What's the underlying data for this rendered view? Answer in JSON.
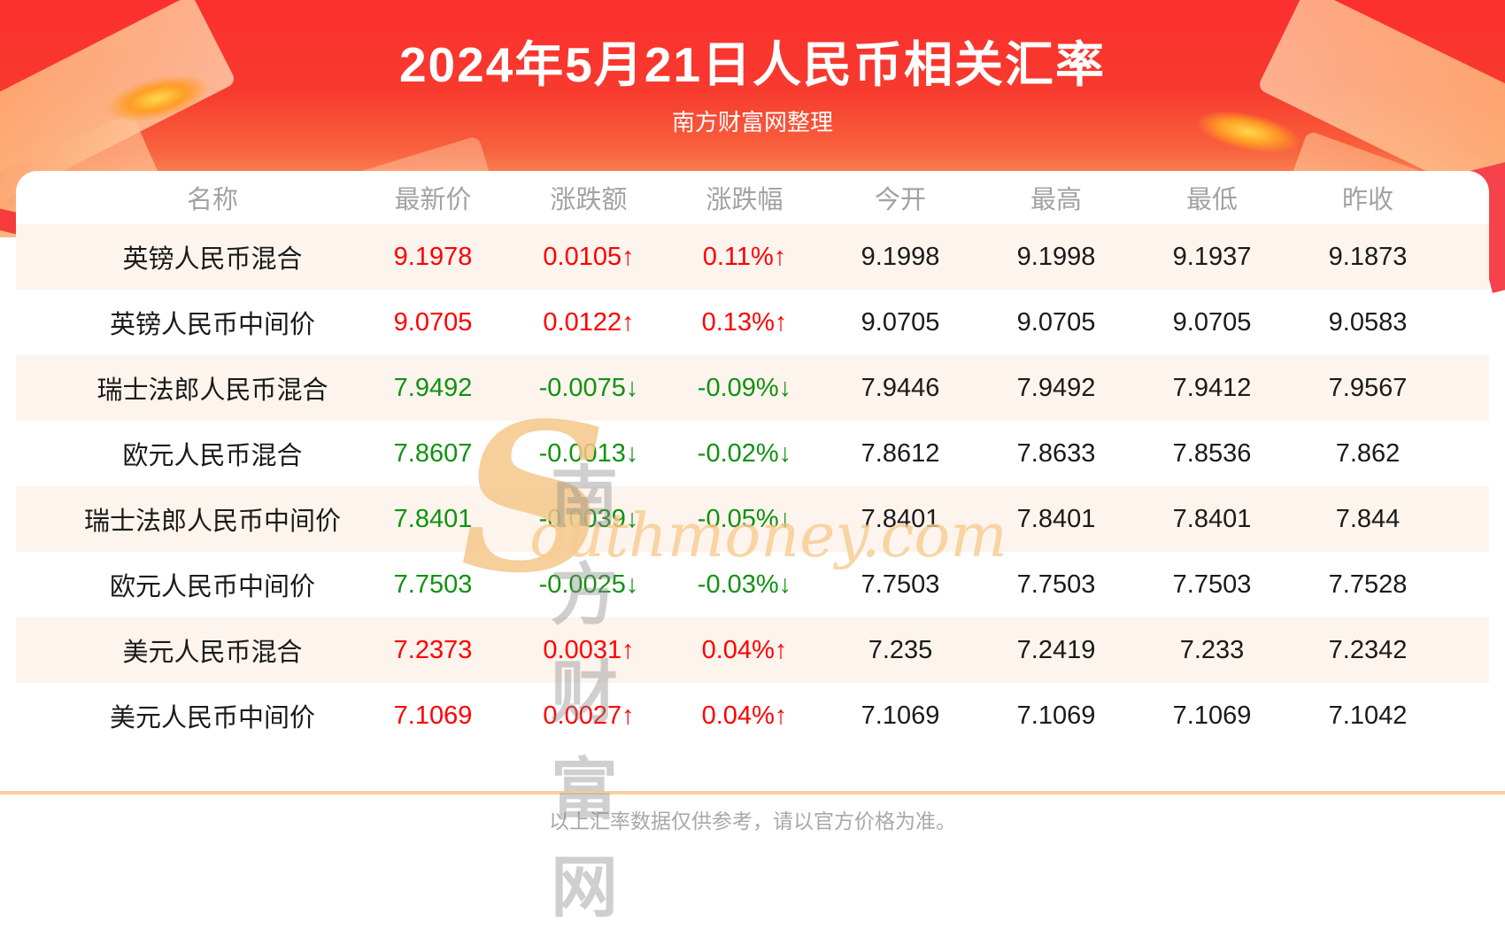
{
  "banner": {
    "title": "2024年5月21日人民币相关汇率",
    "subtitle": "南方财富网整理"
  },
  "chart_data": {
    "type": "table",
    "title": "2024年5月21日人民币相关汇率",
    "columns": [
      "名称",
      "最新价",
      "涨跌额",
      "涨跌幅",
      "今开",
      "最高",
      "最低",
      "昨收"
    ],
    "rows": [
      {
        "name": "英镑人民币混合",
        "latest": "9.1978",
        "change": "0.0105↑",
        "pct": "0.11%↑",
        "open": "9.1998",
        "high": "9.1998",
        "low": "9.1937",
        "prev": "9.1873",
        "trend": "up"
      },
      {
        "name": "英镑人民币中间价",
        "latest": "9.0705",
        "change": "0.0122↑",
        "pct": "0.13%↑",
        "open": "9.0705",
        "high": "9.0705",
        "low": "9.0705",
        "prev": "9.0583",
        "trend": "up"
      },
      {
        "name": "瑞士法郎人民币混合",
        "latest": "7.9492",
        "change": "-0.0075↓",
        "pct": "-0.09%↓",
        "open": "7.9446",
        "high": "7.9492",
        "low": "7.9412",
        "prev": "7.9567",
        "trend": "down"
      },
      {
        "name": "欧元人民币混合",
        "latest": "7.8607",
        "change": "-0.0013↓",
        "pct": "-0.02%↓",
        "open": "7.8612",
        "high": "7.8633",
        "low": "7.8536",
        "prev": "7.862",
        "trend": "down"
      },
      {
        "name": "瑞士法郎人民币中间价",
        "latest": "7.8401",
        "change": "-0.0039↓",
        "pct": "-0.05%↓",
        "open": "7.8401",
        "high": "7.8401",
        "low": "7.8401",
        "prev": "7.844",
        "trend": "down"
      },
      {
        "name": "欧元人民币中间价",
        "latest": "7.7503",
        "change": "-0.0025↓",
        "pct": "-0.03%↓",
        "open": "7.7503",
        "high": "7.7503",
        "low": "7.7503",
        "prev": "7.7528",
        "trend": "down"
      },
      {
        "name": "美元人民币混合",
        "latest": "7.2373",
        "change": "0.0031↑",
        "pct": "0.04%↑",
        "open": "7.235",
        "high": "7.2419",
        "low": "7.233",
        "prev": "7.2342",
        "trend": "up"
      },
      {
        "name": "美元人民币中间价",
        "latest": "7.1069",
        "change": "0.0027↑",
        "pct": "0.04%↑",
        "open": "7.1069",
        "high": "7.1069",
        "low": "7.1069",
        "prev": "7.1042",
        "trend": "up"
      }
    ]
  },
  "watermark": {
    "swoosh": "S",
    "cn": "南方财富网",
    "en": "outhmoney.com"
  },
  "footer": {
    "note": "以上汇率数据仅供参考，请以官方价格为准。"
  },
  "colors": {
    "up_red": "#fe0000",
    "down_green": "#109210",
    "banner_red": "#fc2f2f",
    "row_alt": "#fdf4ed",
    "divider": "#f8cf9e",
    "header_gray": "#a2a2a2"
  }
}
